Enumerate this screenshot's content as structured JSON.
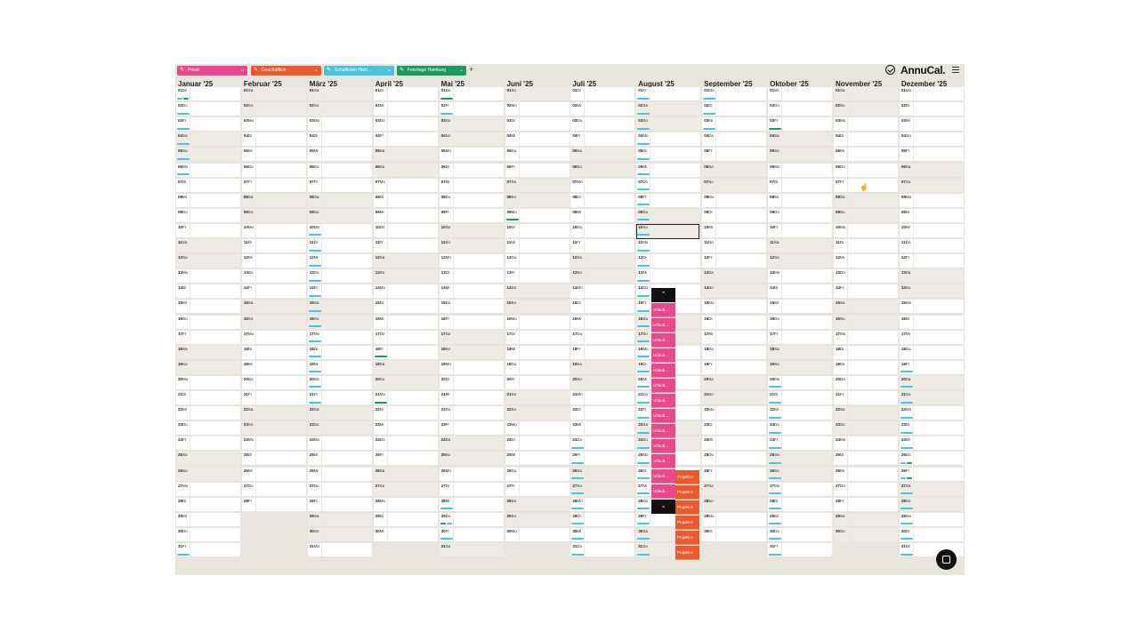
{
  "toolbar": {
    "categories": [
      {
        "label": "Privat",
        "color": "#e8498a"
      },
      {
        "label": "Geschäftlich",
        "color": "#ea5a2c"
      },
      {
        "label": "Schulferien Ham...",
        "color": "#4cc3dd"
      },
      {
        "label": "Feiertage Hamburg",
        "color": "#1f9a5e"
      }
    ],
    "add_label": "+",
    "app_name": "AnnuCal."
  },
  "colors": {
    "privat": "#e8498a",
    "geschaeftlich": "#ea5a2c",
    "schulferien": "#4cc3dd",
    "feiertage": "#1f9a5e",
    "weekend_bg": "#eeebe6",
    "app_bg": "#e8e5de"
  },
  "months": [
    {
      "name": "Januar '25",
      "weekdays": [
        "Mi",
        "Do",
        "Fr",
        "Sa",
        "So",
        "Mo",
        "Di",
        "Mi",
        "Do",
        "Fr",
        "Sa",
        "So",
        "Mo",
        "Di",
        "Mi",
        "Do",
        "Fr",
        "Sa",
        "So",
        "Mo",
        "Di",
        "Mi",
        "Do",
        "Fr",
        "Sa",
        "So",
        "Mo",
        "Di",
        "Mi",
        "Do",
        "Fr"
      ]
    },
    {
      "name": "Februar '25",
      "weekdays": [
        "Sa",
        "So",
        "Mo",
        "Di",
        "Mi",
        "Do",
        "Fr",
        "Sa",
        "So",
        "Mo",
        "Di",
        "Mi",
        "Do",
        "Fr",
        "Sa",
        "So",
        "Mo",
        "Di",
        "Mi",
        "Do",
        "Fr",
        "Sa",
        "So",
        "Mo",
        "Di",
        "Mi",
        "Do",
        "Fr"
      ]
    },
    {
      "name": "März '25",
      "weekdays": [
        "Sa",
        "So",
        "Mo",
        "Di",
        "Mi",
        "Do",
        "Fr",
        "Sa",
        "So",
        "Mo",
        "Di",
        "Mi",
        "Do",
        "Fr",
        "Sa",
        "So",
        "Mo",
        "Di",
        "Mi",
        "Do",
        "Fr",
        "Sa",
        "So",
        "Mo",
        "Di",
        "Mi",
        "Do",
        "Fr",
        "Sa",
        "So",
        "Mo"
      ]
    },
    {
      "name": "April '25",
      "weekdays": [
        "Di",
        "Mi",
        "Do",
        "Fr",
        "Sa",
        "So",
        "Mo",
        "Di",
        "Mi",
        "Do",
        "Fr",
        "Sa",
        "So",
        "Mo",
        "Di",
        "Mi",
        "Do",
        "Fr",
        "Sa",
        "So",
        "Mo",
        "Di",
        "Mi",
        "Do",
        "Fr",
        "Sa",
        "So",
        "Mo",
        "Di",
        "Mi"
      ]
    },
    {
      "name": "Mai '25",
      "weekdays": [
        "Do",
        "Fr",
        "Sa",
        "So",
        "Mo",
        "Di",
        "Mi",
        "Do",
        "Fr",
        "Sa",
        "So",
        "Mo",
        "Di",
        "Mi",
        "Do",
        "Fr",
        "Sa",
        "So",
        "Mo",
        "Di",
        "Mi",
        "Do",
        "Fr",
        "Sa",
        "So",
        "Mo",
        "Di",
        "Mi",
        "Do",
        "Fr",
        "Sa"
      ]
    },
    {
      "name": "Juni '25",
      "weekdays": [
        "So",
        "Mo",
        "Di",
        "Mi",
        "Do",
        "Fr",
        "Sa",
        "So",
        "Mo",
        "Di",
        "Mi",
        "Do",
        "Fr",
        "Sa",
        "So",
        "Mo",
        "Di",
        "Mi",
        "Do",
        "Fr",
        "Sa",
        "So",
        "Mo",
        "Di",
        "Mi",
        "Do",
        "Fr",
        "Sa",
        "So",
        "Mo"
      ]
    },
    {
      "name": "Juli '25",
      "weekdays": [
        "Di",
        "Mi",
        "Do",
        "Fr",
        "Sa",
        "So",
        "Mo",
        "Di",
        "Mi",
        "Do",
        "Fr",
        "Sa",
        "So",
        "Mo",
        "Di",
        "Mi",
        "Do",
        "Fr",
        "Sa",
        "So",
        "Mo",
        "Di",
        "Mi",
        "Do",
        "Fr",
        "Sa",
        "So",
        "Mo",
        "Di",
        "Mi",
        "Do"
      ]
    },
    {
      "name": "August '25",
      "weekdays": [
        "Fr",
        "Sa",
        "So",
        "Mo",
        "Di",
        "Mi",
        "Do",
        "Fr",
        "Sa",
        "So",
        "Mo",
        "Di",
        "Mi",
        "Do",
        "Fr",
        "Sa",
        "So",
        "Mo",
        "Di",
        "Mi",
        "Do",
        "Fr",
        "Sa",
        "So",
        "Mo",
        "Di",
        "Mi",
        "Do",
        "Fr",
        "Sa",
        "So"
      ]
    },
    {
      "name": "September '25",
      "weekdays": [
        "Mo",
        "Di",
        "Mi",
        "Do",
        "Fr",
        "Sa",
        "So",
        "Mo",
        "Di",
        "Mi",
        "Do",
        "Fr",
        "Sa",
        "So",
        "Mo",
        "Di",
        "Mi",
        "Do",
        "Fr",
        "Sa",
        "So",
        "Mo",
        "Di",
        "Mi",
        "Do",
        "Fr",
        "Sa",
        "So",
        "Mo",
        "Di"
      ]
    },
    {
      "name": "Oktober '25",
      "weekdays": [
        "Mi",
        "Do",
        "Fr",
        "Sa",
        "So",
        "Mo",
        "Di",
        "Mi",
        "Do",
        "Fr",
        "Sa",
        "So",
        "Mo",
        "Di",
        "Mi",
        "Do",
        "Fr",
        "Sa",
        "So",
        "Mo",
        "Di",
        "Mi",
        "Do",
        "Fr",
        "Sa",
        "So",
        "Mo",
        "Di",
        "Mi",
        "Do",
        "Fr"
      ]
    },
    {
      "name": "November '25",
      "weekdays": [
        "Sa",
        "So",
        "Mo",
        "Di",
        "Mi",
        "Do",
        "Fr",
        "Sa",
        "So",
        "Mo",
        "Di",
        "Mi",
        "Do",
        "Fr",
        "Sa",
        "So",
        "Mo",
        "Di",
        "Mi",
        "Do",
        "Fr",
        "Sa",
        "So",
        "Mo",
        "Di",
        "Mi",
        "Do",
        "Fr",
        "Sa",
        "So"
      ]
    },
    {
      "name": "Dezember '25",
      "weekdays": [
        "Mo",
        "Di",
        "Mi",
        "Do",
        "Fr",
        "Sa",
        "So",
        "Mo",
        "Di",
        "Mi",
        "Do",
        "Fr",
        "Sa",
        "So",
        "Mo",
        "Di",
        "Mi",
        "Do",
        "Fr",
        "Sa",
        "So",
        "Mo",
        "Di",
        "Mi",
        "Do",
        "Fr",
        "Sa",
        "So",
        "Mo",
        "Di",
        "Mi"
      ]
    }
  ],
  "events": [
    {
      "month": 0,
      "days": [
        1,
        2,
        3,
        4,
        5,
        6,
        31
      ],
      "category": "schulferien"
    },
    {
      "month": 0,
      "days": [
        1
      ],
      "category": "feiertage"
    },
    {
      "month": 2,
      "days": [
        10,
        11,
        12,
        13,
        14,
        15,
        16,
        17,
        18,
        19,
        20,
        21
      ],
      "category": "schulferien"
    },
    {
      "month": 3,
      "days": [
        18,
        21
      ],
      "category": "feiertage"
    },
    {
      "month": 4,
      "days": [
        1,
        29
      ],
      "category": "feiertage"
    },
    {
      "month": 4,
      "days": [
        2,
        28,
        29,
        30
      ],
      "category": "schulferien"
    },
    {
      "month": 5,
      "days": [
        9
      ],
      "category": "feiertage"
    },
    {
      "month": 6,
      "days": [
        24,
        25,
        26,
        27,
        28,
        29,
        30,
        31
      ],
      "category": "schulferien"
    },
    {
      "month": 7,
      "days": [
        1,
        2,
        3,
        4,
        5,
        6,
        7,
        8,
        9,
        10,
        11,
        12,
        13,
        14,
        15,
        16,
        17,
        18,
        19,
        20,
        21,
        22,
        23,
        24,
        25,
        26,
        27,
        28,
        29,
        30,
        31
      ],
      "category": "schulferien"
    },
    {
      "month": 8,
      "days": [
        1,
        2,
        3
      ],
      "category": "schulferien"
    },
    {
      "month": 9,
      "days": [
        3
      ],
      "category": "feiertage"
    },
    {
      "month": 9,
      "days": [
        20,
        21,
        22,
        23,
        24,
        25,
        26,
        27,
        28,
        29,
        30,
        31
      ],
      "category": "schulferien"
    },
    {
      "month": 10,
      "days": [],
      "category": "schulferien"
    },
    {
      "month": 11,
      "days": [
        19,
        20,
        21,
        22,
        23,
        24,
        25,
        26,
        27,
        28,
        29,
        30,
        31
      ],
      "category": "schulferien"
    },
    {
      "month": 11,
      "days": [
        25,
        26
      ],
      "category": "feiertage"
    }
  ],
  "overlay": {
    "privat_label": "Urlaub...",
    "geschaeftlich_label": "Projekt A",
    "scroll_up": "⌃",
    "scroll_down": "⌄"
  },
  "chat_icon": "chat-bubble-icon",
  "cursor_icon": "hand-cursor-icon"
}
